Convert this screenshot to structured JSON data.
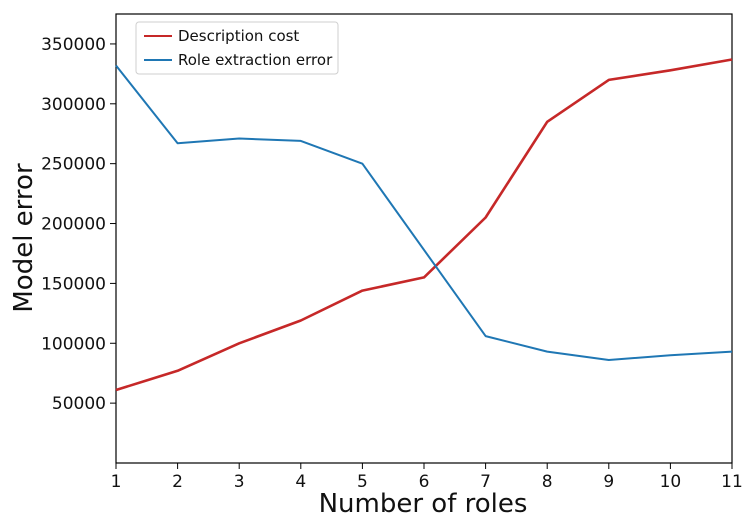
{
  "chart_data": {
    "type": "line",
    "xlabel": "Number of roles",
    "ylabel": "Model error",
    "x": [
      1,
      2,
      3,
      4,
      5,
      6,
      7,
      8,
      9,
      10,
      11
    ],
    "xlim": [
      1,
      11
    ],
    "ylim": [
      0,
      375000
    ],
    "yticks": [
      50000,
      100000,
      150000,
      200000,
      250000,
      300000,
      350000
    ],
    "grid": false,
    "legend_position": "top-left",
    "series": [
      {
        "name": "Description cost",
        "color": "#c62828",
        "values": [
          61000,
          77000,
          100000,
          119000,
          144000,
          155000,
          205000,
          285000,
          320000,
          328000,
          337000
        ]
      },
      {
        "name": "Role extraction error",
        "color": "#1f77b4",
        "values": [
          332000,
          267000,
          271000,
          269000,
          250000,
          null,
          106000,
          93000,
          86000,
          90000,
          93000
        ]
      }
    ]
  }
}
